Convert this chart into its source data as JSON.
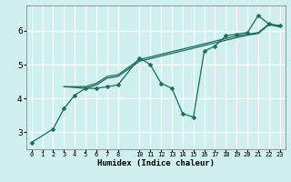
{
  "xlabel": "Humidex (Indice chaleur)",
  "bg_color": "#cff0ee",
  "line_color": "#1a6b5a",
  "grid_color": "#ffffff",
  "xlim": [
    -0.5,
    23.5
  ],
  "ylim": [
    2.5,
    6.75
  ],
  "yticks": [
    3,
    4,
    5,
    6
  ],
  "xticks": [
    0,
    1,
    2,
    3,
    4,
    5,
    6,
    7,
    8,
    10,
    11,
    12,
    13,
    14,
    15,
    16,
    17,
    18,
    19,
    20,
    21,
    22,
    23
  ],
  "line1_x": [
    0,
    2,
    3,
    4,
    5,
    6,
    7,
    8,
    10,
    11,
    12,
    13,
    14,
    15,
    16,
    17,
    18,
    19,
    20,
    21,
    22,
    23
  ],
  "line1_y": [
    2.7,
    3.1,
    3.7,
    4.1,
    4.3,
    4.3,
    4.35,
    4.4,
    5.2,
    5.0,
    4.45,
    4.3,
    3.55,
    3.45,
    5.4,
    5.55,
    5.85,
    5.9,
    5.95,
    6.45,
    6.2,
    6.15
  ],
  "line2_x": [
    3,
    5,
    6,
    7,
    8,
    10,
    19,
    20,
    21,
    22,
    23
  ],
  "line2_y": [
    4.35,
    4.35,
    4.45,
    4.65,
    4.7,
    5.15,
    5.85,
    5.9,
    5.95,
    6.2,
    6.15
  ],
  "line3_x": [
    3,
    5,
    6,
    7,
    8,
    10,
    19,
    20,
    21,
    22,
    23
  ],
  "line3_y": [
    4.35,
    4.3,
    4.4,
    4.6,
    4.65,
    5.1,
    5.8,
    5.87,
    5.92,
    6.18,
    6.12
  ],
  "xlabel_fontsize": 6.5,
  "ytick_fontsize": 6.5,
  "xtick_fontsize": 5.0
}
